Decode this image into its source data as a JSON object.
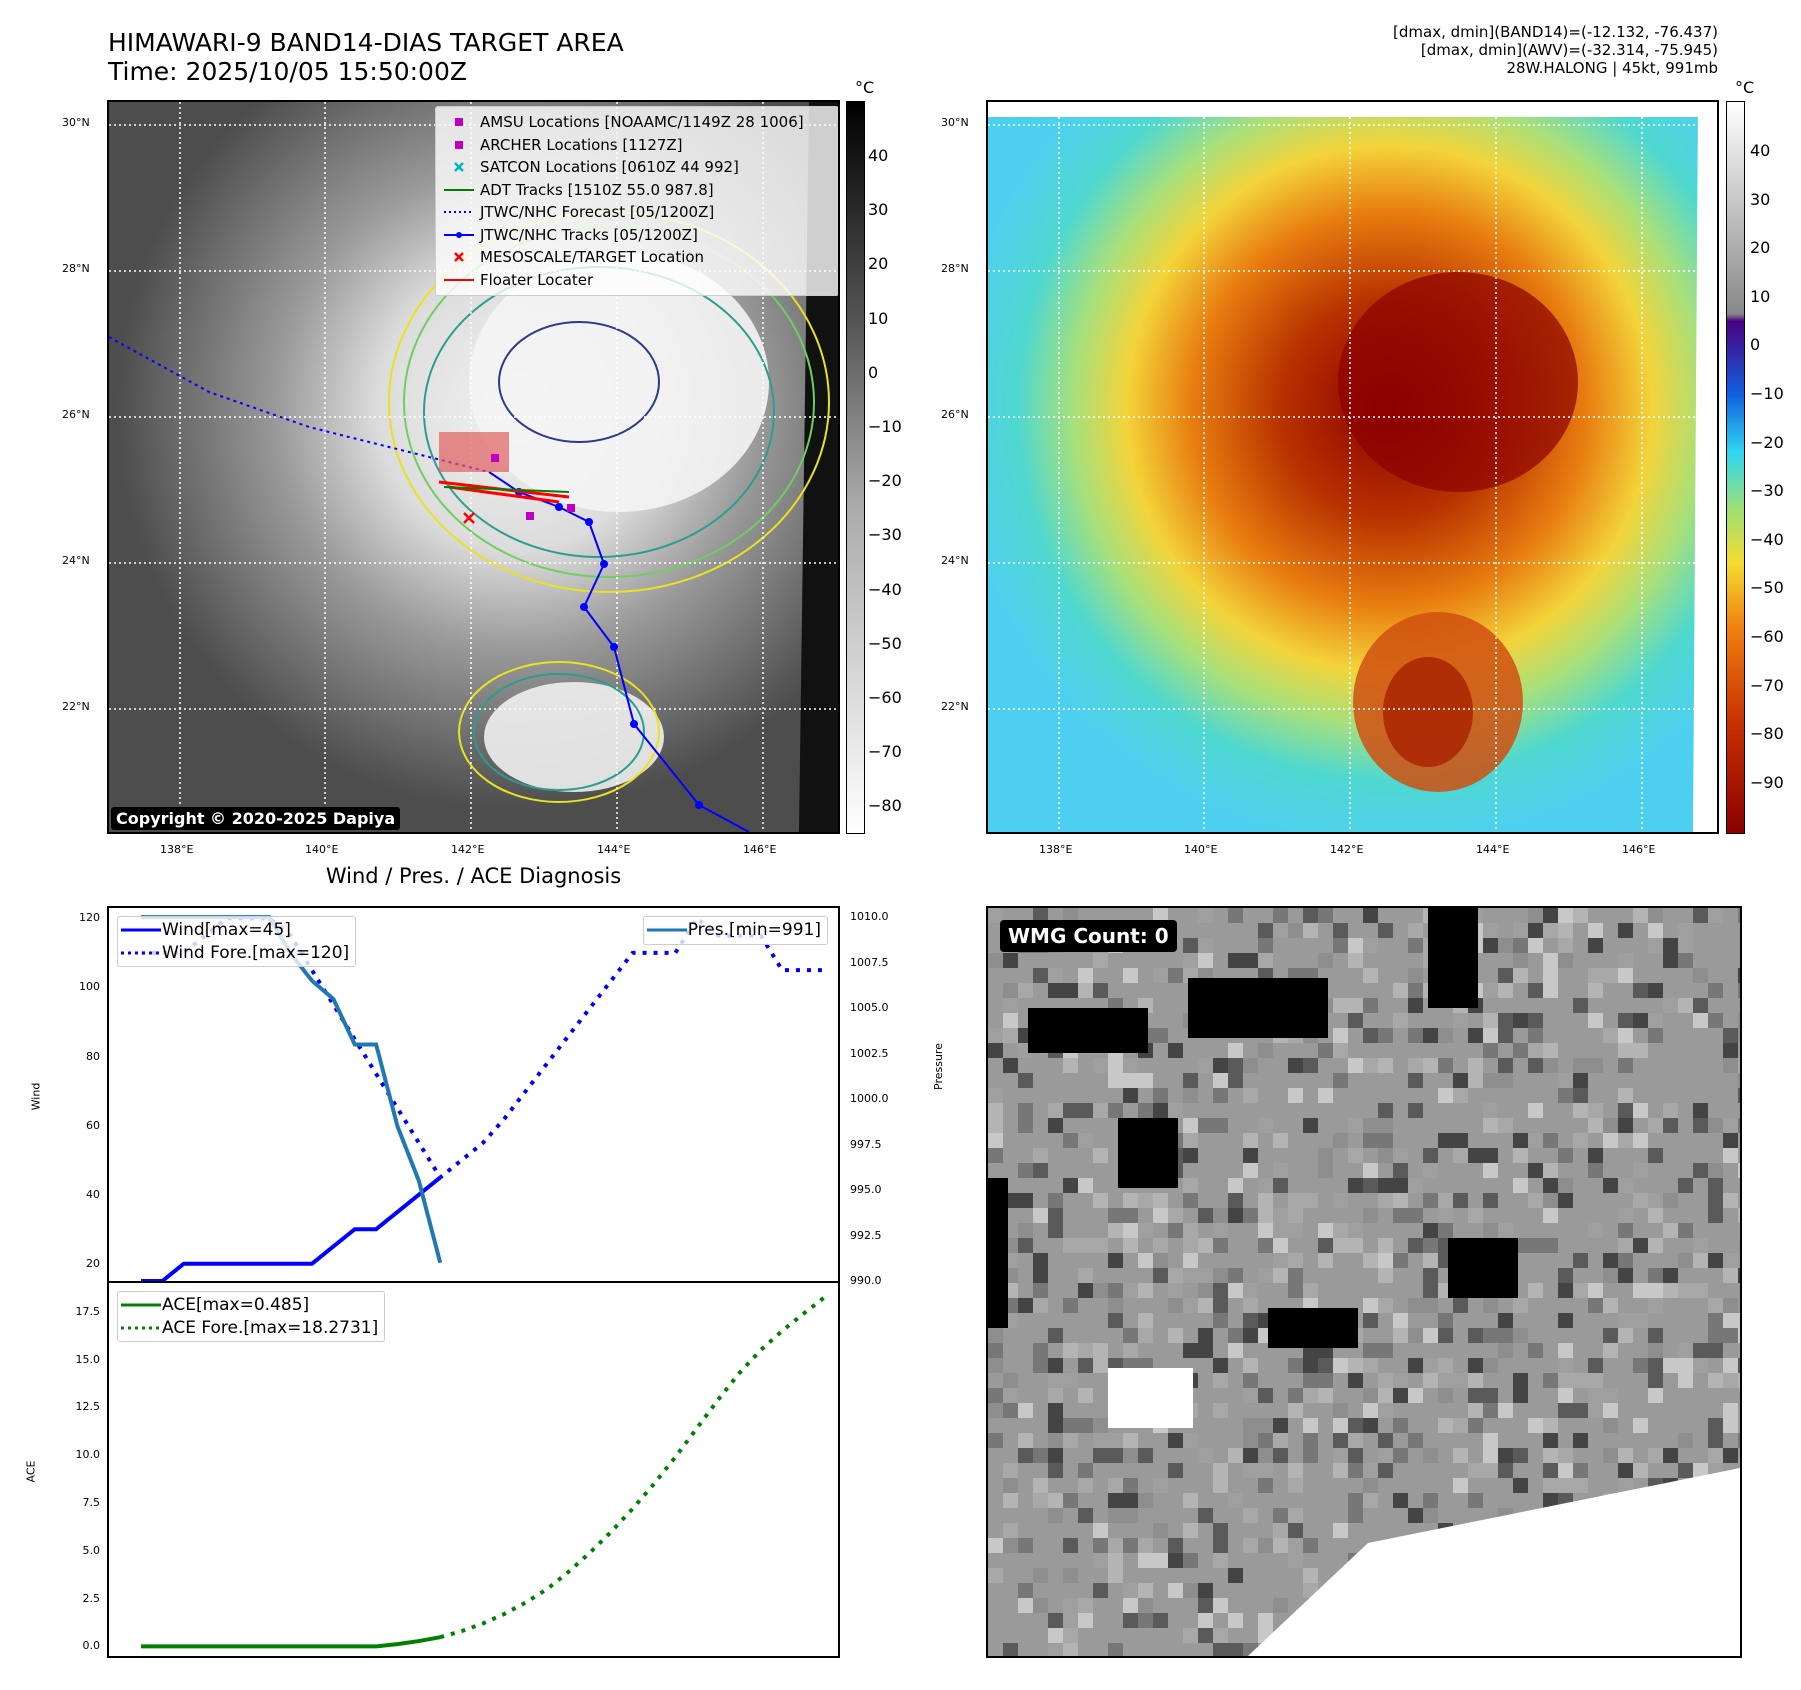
{
  "title": {
    "line1": "HIMAWARI-9 BAND14-DIAS TARGET AREA",
    "line2": "Time: 2025/10/05 15:50:00Z"
  },
  "info": {
    "line1": "[dmax, dmin](BAND14)=(-12.132, -76.437)",
    "line2": "[dmax, dmin](AWV)=(-32.314, -75.945)",
    "line3": "28W.HALONG | 45kt, 991mb"
  },
  "map_axes": {
    "lat_labels": [
      "30°N",
      "28°N",
      "26°N",
      "24°N",
      "22°N"
    ],
    "lon_labels": [
      "138°E",
      "140°E",
      "142°E",
      "144°E",
      "146°E"
    ]
  },
  "colorbar_left": {
    "unit": "°C",
    "ticks": [
      "40",
      "30",
      "20",
      "10",
      "0",
      "−10",
      "−20",
      "−30",
      "−40",
      "−50",
      "−60",
      "−70",
      "−80"
    ]
  },
  "colorbar_right": {
    "unit": "°C",
    "ticks": [
      "40",
      "30",
      "20",
      "10",
      "0",
      "−10",
      "−20",
      "−30",
      "−40",
      "−50",
      "−60",
      "−70",
      "−80",
      "−90"
    ]
  },
  "map_legend": [
    {
      "label": "AMSU Locations [NOAAMC/1149Z 28 1006]",
      "marker": "square",
      "color": "#c000c0"
    },
    {
      "label": "ARCHER Locations [1127Z]",
      "marker": "square",
      "color": "#c000c0"
    },
    {
      "label": "SATCON Locations [0610Z 44 992]",
      "marker": "x",
      "color": "#00b5b5"
    },
    {
      "label": "ADT Tracks [1510Z 55.0 987.8]",
      "marker": "line",
      "color": "#008000"
    },
    {
      "label": "JTWC/NHC Forecast [05/1200Z]",
      "marker": "dotted",
      "color": "#0000ff"
    },
    {
      "label": "JTWC/NHC Tracks [05/1200Z]",
      "marker": "line-dot",
      "color": "#0000ff"
    },
    {
      "label": "MESOSCALE/TARGET Location",
      "marker": "x",
      "color": "#ff0000"
    },
    {
      "label": "Floater Locater",
      "marker": "line",
      "color": "#ff0000"
    }
  ],
  "copyright": "Copyright © 2020-2025 Dapiya",
  "wmg_label": "WMG Count: 0",
  "diag_title": "Wind / Pres. / ACE Diagnosis",
  "chart_data": [
    {
      "type": "line",
      "title": "Wind / Pres. / ACE Diagnosis",
      "ylabel": "Wind",
      "ylabel_right": "Pressure",
      "ylim": [
        15,
        123
      ],
      "ylim_right": [
        990,
        1010.5
      ],
      "yticks": [
        "120",
        "100",
        "80",
        "60",
        "40",
        "20"
      ],
      "yticks_right": [
        "1010.0",
        "1007.5",
        "1005.0",
        "1002.5",
        "1000.0",
        "997.5",
        "995.0",
        "992.5",
        "990.0"
      ],
      "legend_left": [
        "Wind[max=45]",
        "Wind Fore.[max=120]"
      ],
      "legend_right": [
        "Pres.[min=991]"
      ],
      "series": [
        {
          "name": "Wind[max=45]",
          "axis": "left",
          "style": "solid",
          "color": "#0000ff",
          "x": [
            0,
            1,
            2,
            3,
            4,
            5,
            6,
            7,
            8,
            9,
            10,
            11,
            12,
            13,
            14
          ],
          "values": [
            15,
            15,
            20,
            20,
            20,
            20,
            20,
            20,
            20,
            25,
            30,
            30,
            35,
            40,
            45
          ]
        },
        {
          "name": "Wind Fore.[max=120]",
          "axis": "left",
          "style": "dotted",
          "color": "#0000ff",
          "x": [
            0,
            1,
            2,
            3,
            4,
            5,
            6,
            7,
            14,
            15,
            16,
            17,
            18,
            19,
            20,
            21,
            22,
            23,
            24,
            25,
            26,
            27,
            28,
            29,
            30,
            31,
            32
          ],
          "values": [
            110,
            110,
            110,
            115,
            120,
            120,
            120,
            115,
            45,
            50,
            55,
            62,
            70,
            78,
            86,
            94,
            102,
            110,
            110,
            110,
            120,
            115,
            115,
            115,
            105,
            105,
            105
          ]
        },
        {
          "name": "Pres.[min=991]",
          "axis": "right",
          "style": "solid",
          "color": "#1f77b4",
          "x": [
            0,
            1,
            2,
            3,
            4,
            5,
            6,
            7,
            8,
            9,
            10,
            11,
            12,
            13,
            14
          ],
          "values": [
            1010,
            1010,
            1010,
            1010,
            1010,
            1010,
            1010,
            1008,
            1006.5,
            1005.5,
            1003,
            1003,
            998.5,
            995.5,
            991
          ]
        }
      ]
    },
    {
      "type": "line",
      "ylabel": "ACE",
      "ylim": [
        -0.5,
        19
      ],
      "yticks": [
        "17.5",
        "15.0",
        "12.5",
        "10.0",
        "7.5",
        "5.0",
        "2.5",
        "0.0"
      ],
      "legend": [
        "ACE[max=0.485]",
        "ACE Fore.[max=18.2731]"
      ],
      "series": [
        {
          "name": "ACE[max=0.485]",
          "style": "solid",
          "color": "#008000",
          "x": [
            0,
            1,
            2,
            3,
            4,
            5,
            6,
            7,
            8,
            9,
            10,
            11,
            12,
            13,
            14
          ],
          "values": [
            0,
            0,
            0,
            0,
            0,
            0,
            0,
            0,
            0,
            0,
            0,
            0,
            0.12,
            0.28,
            0.485
          ]
        },
        {
          "name": "ACE Fore.[max=18.2731]",
          "style": "dotted",
          "color": "#008000",
          "x": [
            14,
            15,
            16,
            17,
            18,
            19,
            20,
            21,
            22,
            23,
            24,
            25,
            26,
            27,
            28,
            29,
            30,
            31,
            32
          ],
          "values": [
            0.485,
            0.8,
            1.2,
            1.7,
            2.3,
            3.0,
            3.9,
            4.9,
            6.0,
            7.2,
            8.5,
            9.9,
            11.4,
            12.9,
            14.3,
            15.5,
            16.5,
            17.4,
            18.2731
          ]
        }
      ]
    }
  ]
}
